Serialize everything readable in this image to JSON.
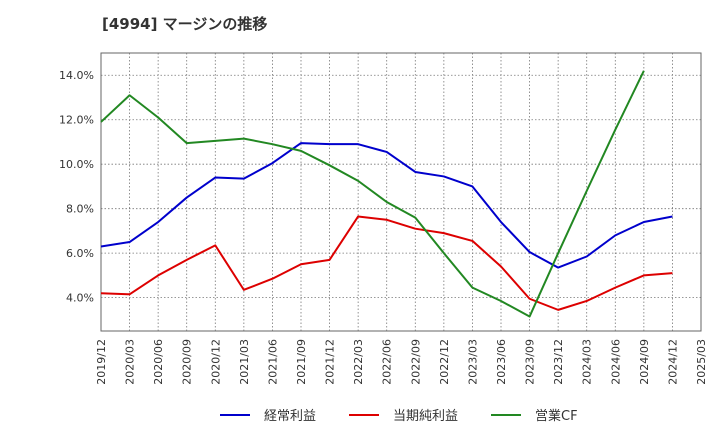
{
  "chart_data": {
    "type": "line",
    "title": "[4994]  マージンの推移",
    "xlabel": "",
    "ylabel": "",
    "x": [
      "2019/12",
      "2020/03",
      "2020/06",
      "2020/09",
      "2020/12",
      "2021/03",
      "2021/06",
      "2021/09",
      "2021/12",
      "2022/03",
      "2022/06",
      "2022/09",
      "2022/12",
      "2023/03",
      "2023/06",
      "2023/09",
      "2023/12",
      "2024/03",
      "2024/06",
      "2024/09",
      "2024/12",
      "2025/03"
    ],
    "ylim": [
      2.5,
      15.0
    ],
    "yticks": [
      4.0,
      6.0,
      8.0,
      10.0,
      12.0,
      14.0
    ],
    "ytick_labels": [
      "4.0%",
      "6.0%",
      "8.0%",
      "10.0%",
      "12.0%",
      "14.0%"
    ],
    "grid": true,
    "legend_position": "bottom",
    "series": [
      {
        "name": "経常利益",
        "color": "#0000cc",
        "values": [
          6.3,
          6.5,
          7.4,
          8.5,
          9.4,
          9.35,
          10.05,
          10.95,
          10.9,
          10.9,
          10.55,
          9.65,
          9.45,
          9.0,
          7.4,
          6.05,
          5.35,
          5.85,
          6.8,
          7.4,
          7.65,
          null
        ]
      },
      {
        "name": "当期純利益",
        "color": "#dd0000",
        "values": [
          4.2,
          4.15,
          5.0,
          5.7,
          6.35,
          4.35,
          4.85,
          5.5,
          5.7,
          7.65,
          7.5,
          7.1,
          6.9,
          6.55,
          5.4,
          3.95,
          3.45,
          3.85,
          4.45,
          5.0,
          5.1,
          null
        ]
      },
      {
        "name": "営業CF",
        "color": "#228822",
        "values": [
          11.9,
          13.1,
          12.1,
          10.95,
          11.05,
          11.15,
          10.9,
          10.6,
          9.95,
          9.25,
          8.3,
          7.6,
          6.0,
          4.45,
          3.85,
          3.15,
          6.0,
          8.8,
          11.55,
          14.2,
          null,
          null
        ]
      }
    ]
  }
}
